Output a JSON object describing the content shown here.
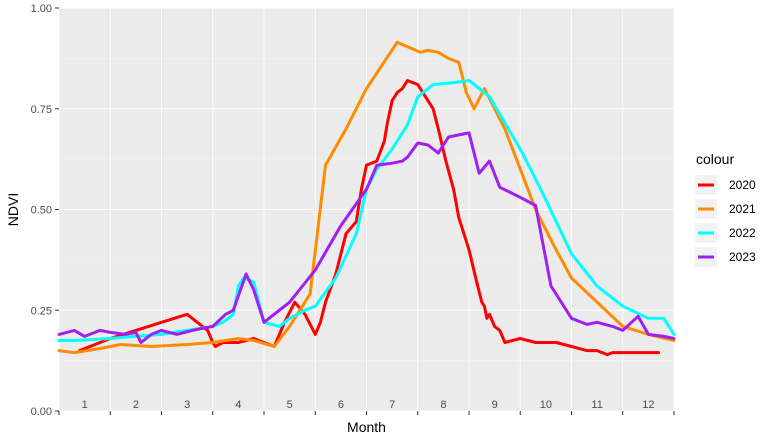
{
  "chart_data": {
    "type": "line",
    "title": "",
    "xlabel": "Month",
    "ylabel": "NDVI",
    "ylim": [
      0,
      1
    ],
    "xlim": [
      0,
      12
    ],
    "yticks": [
      "0.00",
      "0.25",
      "0.50",
      "0.75",
      "1.00"
    ],
    "x_tick_labels": [
      "1",
      "2",
      "3",
      "4",
      "5",
      "6",
      "7",
      "8",
      "9",
      "10",
      "11",
      "12"
    ],
    "grid": true,
    "legend": {
      "title": "colour",
      "position": "right"
    },
    "series": [
      {
        "name": "2020",
        "color": "#ff0000",
        "x": [
          0.4,
          1.0,
          1.5,
          2.0,
          2.5,
          2.9,
          3.0,
          3.05,
          3.2,
          3.5,
          3.8,
          4.0,
          4.2,
          4.4,
          4.6,
          4.8,
          5.0,
          5.1,
          5.2,
          5.4,
          5.6,
          5.8,
          5.9,
          6.0,
          6.2,
          6.35,
          6.4,
          6.5,
          6.6,
          6.7,
          6.8,
          7.0,
          7.2,
          7.3,
          7.4,
          7.55,
          7.7,
          7.8,
          8.0,
          8.15,
          8.25,
          8.3,
          8.35,
          8.4,
          8.5,
          8.6,
          8.7,
          9.0,
          9.3,
          9.5,
          9.7,
          10.0,
          10.3,
          10.5,
          10.7,
          10.8,
          11.0,
          11.2,
          11.5,
          11.7
        ],
        "y": [
          0.15,
          0.18,
          0.2,
          0.22,
          0.24,
          0.2,
          0.17,
          0.16,
          0.17,
          0.17,
          0.18,
          0.17,
          0.16,
          0.22,
          0.27,
          0.24,
          0.19,
          0.22,
          0.27,
          0.34,
          0.44,
          0.47,
          0.55,
          0.61,
          0.62,
          0.67,
          0.71,
          0.77,
          0.79,
          0.8,
          0.82,
          0.81,
          0.77,
          0.75,
          0.7,
          0.62,
          0.55,
          0.48,
          0.4,
          0.32,
          0.27,
          0.26,
          0.23,
          0.24,
          0.21,
          0.2,
          0.17,
          0.18,
          0.17,
          0.17,
          0.17,
          0.16,
          0.15,
          0.15,
          0.14,
          0.145,
          0.145,
          0.145,
          0.145,
          0.145
        ]
      },
      {
        "name": "2021",
        "color": "#ff8c00",
        "x": [
          0.0,
          0.3,
          0.8,
          1.2,
          1.8,
          2.5,
          3.0,
          3.5,
          3.8,
          4.2,
          4.5,
          4.9,
          5.2,
          5.6,
          6.0,
          6.6,
          7.05,
          7.2,
          7.4,
          7.6,
          7.8,
          7.95,
          8.1,
          8.3,
          8.7,
          9.0,
          9.3,
          9.7,
          10.0,
          10.5,
          11.0,
          11.5,
          12.0
        ],
        "y": [
          0.15,
          0.145,
          0.155,
          0.165,
          0.16,
          0.165,
          0.17,
          0.18,
          0.175,
          0.16,
          0.21,
          0.29,
          0.61,
          0.7,
          0.8,
          0.915,
          0.89,
          0.895,
          0.89,
          0.875,
          0.865,
          0.79,
          0.75,
          0.8,
          0.7,
          0.6,
          0.5,
          0.4,
          0.33,
          0.27,
          0.21,
          0.19,
          0.175
        ]
      },
      {
        "name": "2022",
        "color": "#00ffff",
        "x": [
          0.0,
          0.3,
          1.0,
          1.5,
          2.0,
          2.5,
          3.0,
          3.2,
          3.4,
          3.5,
          3.6,
          3.8,
          4.0,
          4.3,
          4.5,
          4.8,
          5.0,
          5.4,
          5.8,
          6.0,
          6.2,
          6.5,
          6.8,
          7.0,
          7.3,
          7.7,
          8.0,
          8.4,
          9.0,
          9.4,
          10.0,
          10.5,
          11.0,
          11.5,
          11.8,
          12.0
        ],
        "y": [
          0.175,
          0.175,
          0.18,
          0.185,
          0.19,
          0.2,
          0.21,
          0.22,
          0.24,
          0.31,
          0.33,
          0.32,
          0.22,
          0.21,
          0.23,
          0.25,
          0.26,
          0.33,
          0.44,
          0.55,
          0.6,
          0.65,
          0.71,
          0.78,
          0.81,
          0.815,
          0.82,
          0.78,
          0.65,
          0.55,
          0.39,
          0.31,
          0.26,
          0.23,
          0.23,
          0.19
        ]
      },
      {
        "name": "2023",
        "color": "#a020f0",
        "x": [
          0.0,
          0.3,
          0.5,
          0.8,
          1.0,
          1.3,
          1.5,
          1.6,
          1.8,
          2.0,
          2.3,
          2.6,
          3.0,
          3.25,
          3.4,
          3.65,
          3.8,
          4.0,
          4.5,
          5.0,
          5.5,
          6.0,
          6.2,
          6.5,
          6.7,
          6.8,
          7.0,
          7.2,
          7.4,
          7.6,
          7.8,
          8.0,
          8.2,
          8.4,
          8.6,
          9.0,
          9.3,
          9.6,
          10.0,
          10.3,
          10.5,
          10.8,
          11.0,
          11.3,
          11.5,
          11.8,
          12.0
        ],
        "y": [
          0.19,
          0.2,
          0.185,
          0.2,
          0.195,
          0.19,
          0.195,
          0.17,
          0.19,
          0.2,
          0.19,
          0.2,
          0.21,
          0.24,
          0.25,
          0.34,
          0.3,
          0.22,
          0.27,
          0.35,
          0.46,
          0.55,
          0.61,
          0.615,
          0.62,
          0.63,
          0.665,
          0.66,
          0.64,
          0.68,
          0.685,
          0.69,
          0.59,
          0.62,
          0.555,
          0.53,
          0.51,
          0.31,
          0.23,
          0.215,
          0.22,
          0.21,
          0.2,
          0.235,
          0.19,
          0.185,
          0.18
        ]
      }
    ]
  }
}
